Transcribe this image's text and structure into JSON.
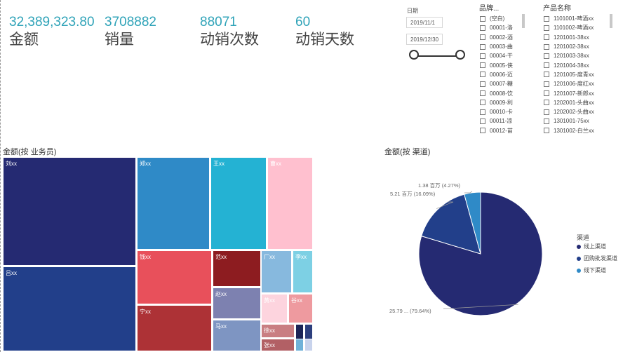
{
  "kpis": [
    {
      "value": "32,389,323.80",
      "label": "金额"
    },
    {
      "value": "3708882",
      "label": "销量"
    },
    {
      "value": "88071",
      "label": "动销次数"
    },
    {
      "value": "60",
      "label": "动销天数"
    }
  ],
  "date_filter": {
    "title": "日期",
    "start": "2019/11/1",
    "end": "2019/12/30"
  },
  "brand_slicer": {
    "title": "品牌...",
    "items": [
      "(空白)",
      "00001-洛",
      "00002-酒",
      "00003-曲",
      "00004-干",
      "00005-侠",
      "00006-迈",
      "00007-糖",
      "00008-饮",
      "00009-利",
      "00010-卡",
      "00011-凉",
      "00012-苗"
    ]
  },
  "product_slicer": {
    "title": "产品名称",
    "items": [
      "1101001-啤酒xx",
      "1101002-啤酒xx",
      "1201001-38xx",
      "1201002-38xx",
      "1201003-38xx",
      "1201004-38xx",
      "1201005-度青xx",
      "1201006-度红xx",
      "1201007-新郎xx",
      "1202001-头曲xx",
      "1202002-头曲xx",
      "1301001-75xx",
      "1301002-白兰xx"
    ]
  },
  "treemap": {
    "title": "金额(按 业务员)",
    "tiles": [
      {
        "label": "刘xx",
        "color": "#252a72"
      },
      {
        "label": "吕xx",
        "color": "#223f8a"
      },
      {
        "label": "郑xx",
        "color": "#2f8ac7"
      },
      {
        "label": "王xx",
        "color": "#24b2d3"
      },
      {
        "label": "曹xx",
        "color": "#ffc0cf"
      },
      {
        "label": "钱xx",
        "color": "#e8505b"
      },
      {
        "label": "宁xx",
        "color": "#ad3236"
      },
      {
        "label": "范xx",
        "color": "#8d1c20"
      },
      {
        "label": "赵xx",
        "color": "#7d81b0"
      },
      {
        "label": "马xx",
        "color": "#7e95c2"
      },
      {
        "label": "厂xx",
        "color": "#87b9de"
      },
      {
        "label": "李xx",
        "color": "#7dd0e4"
      },
      {
        "label": "黄xx",
        "color": "#fdd4de"
      },
      {
        "label": "谷xx",
        "color": "#ee9a9f"
      },
      {
        "label": "徐xx",
        "color": "#c97e82"
      },
      {
        "label": "张xx",
        "color": "#b26065"
      },
      {
        "label": "",
        "color": "#1c2456"
      },
      {
        "label": "",
        "color": "#2d3f7d"
      },
      {
        "label": "",
        "color": "#6fb1d8"
      },
      {
        "label": "",
        "color": "#c8d3ec"
      }
    ]
  },
  "pie": {
    "title": "金额(按 渠道)",
    "legend_title": "渠道",
    "slices": [
      {
        "name": "线上渠道",
        "value": 25.79,
        "percent": 79.64,
        "label": "25.79 ... (79.64%)",
        "color": "#252a72"
      },
      {
        "name": "团购批发渠道",
        "value": 5.21,
        "percent": 16.09,
        "label": "5.21 百万 (16.09%)",
        "color": "#223f8a"
      },
      {
        "name": "线下渠道",
        "value": 1.38,
        "percent": 4.27,
        "label": "1.38 百万 (4.27%)",
        "color": "#2f8ac7"
      }
    ]
  }
}
